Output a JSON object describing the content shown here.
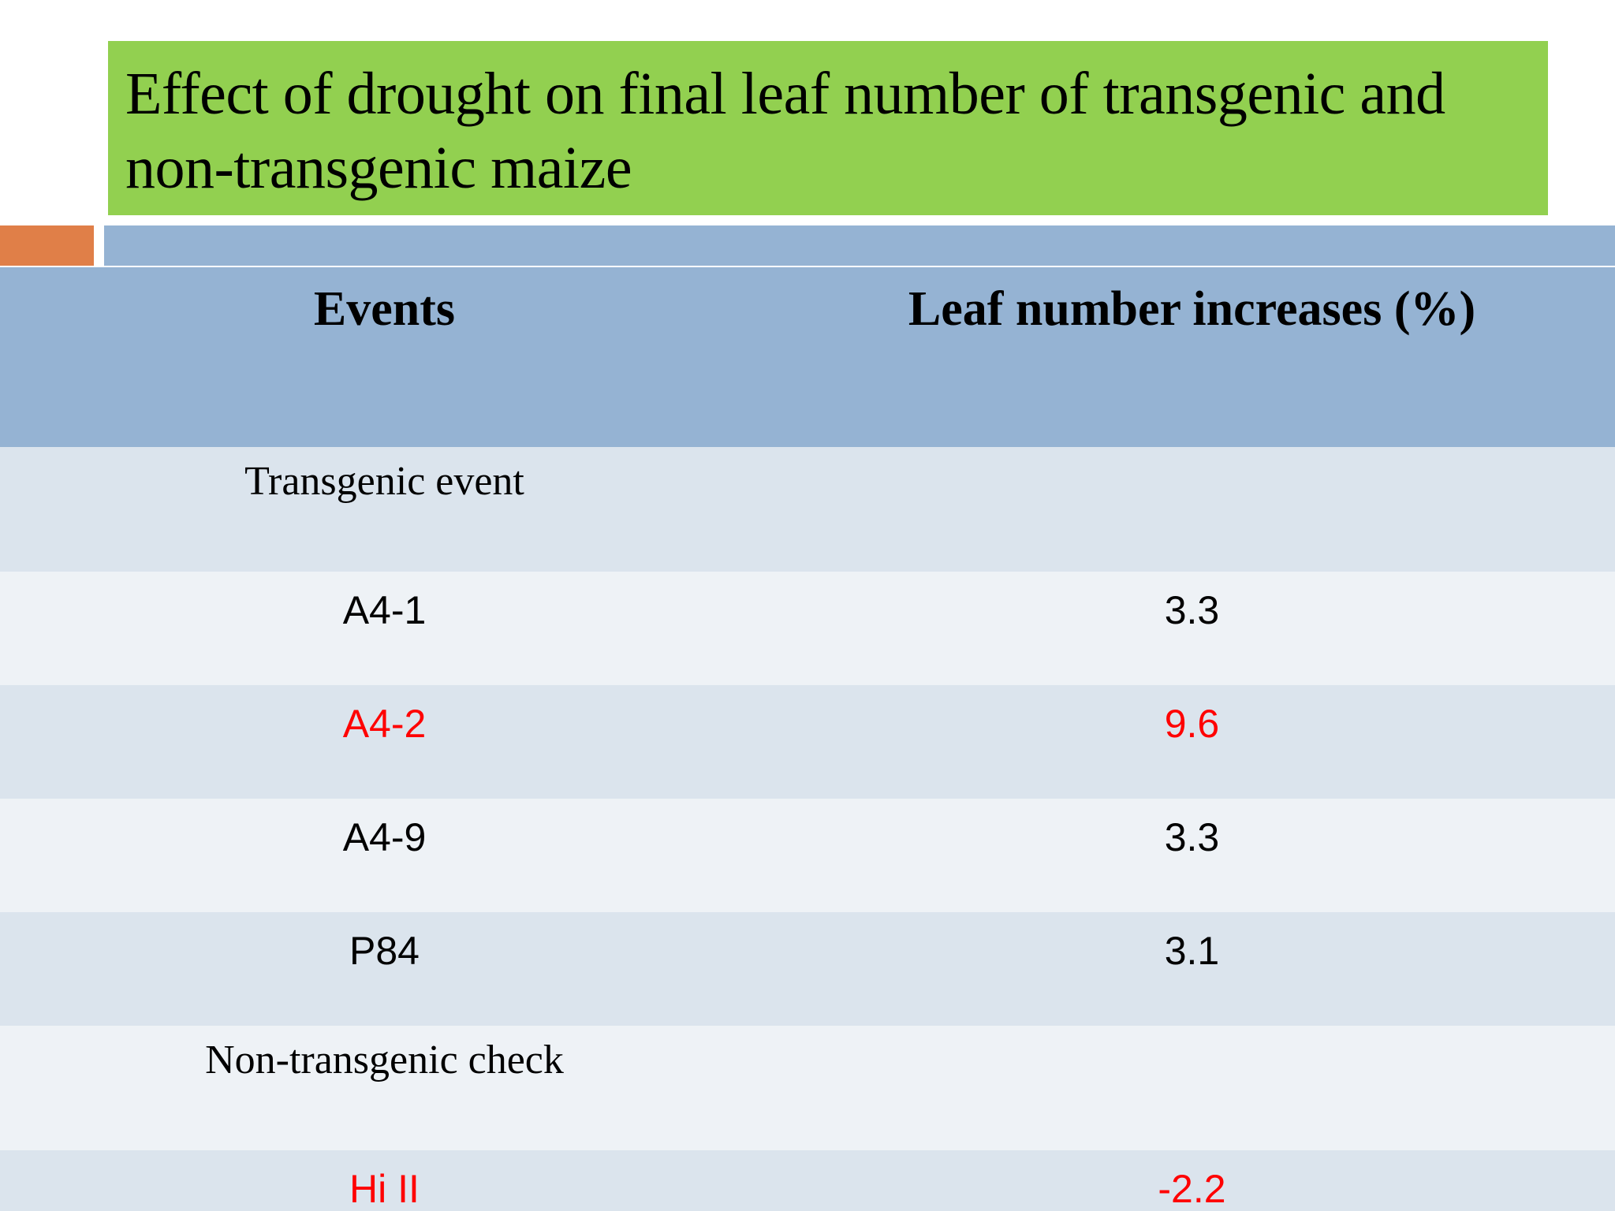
{
  "slide": {
    "title_line1": "Effect of drought on final leaf number of transgenic and",
    "title_line2": "non-transgenic maize"
  },
  "colors": {
    "title_background": "#92d050",
    "accent_orange": "#e07f48",
    "accent_blue": "#95b3d3",
    "header_background": "#95b3d3",
    "row_dark": "#dbe4ed",
    "row_light": "#eef2f6",
    "highlight_text": "#ff0000"
  },
  "table": {
    "headers": [
      "Events",
      "Leaf number increases (%)"
    ],
    "rows": [
      {
        "event": "Transgenic event",
        "value": ""
      },
      {
        "event": "A4-1",
        "value": "3.3"
      },
      {
        "event": "A4-2",
        "value": "9.6"
      },
      {
        "event": "A4-9",
        "value": "3.3"
      },
      {
        "event": "P84",
        "value": "3.1"
      },
      {
        "event": "Non-transgenic check",
        "value": ""
      },
      {
        "event": "Hi II",
        "value": "-2.2"
      }
    ]
  }
}
